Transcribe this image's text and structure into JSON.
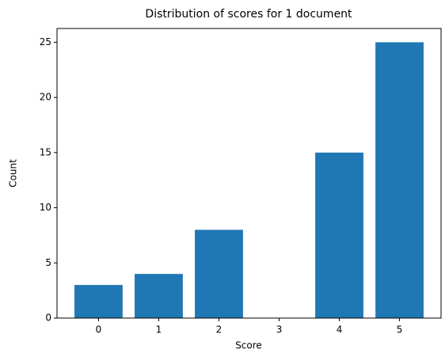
{
  "chart_data": {
    "type": "bar",
    "title": "Distribution of scores for 1 document",
    "x_label": "Score",
    "y_label": "Count",
    "x": [
      0,
      1,
      2,
      3,
      4,
      5
    ],
    "values": [
      3,
      4,
      8,
      0,
      15,
      25
    ],
    "color": "#1f77b4",
    "xlim": [
      -0.69,
      5.69
    ],
    "xticks": [
      0,
      1,
      2,
      3,
      4,
      5
    ],
    "ylim": [
      0,
      26.25
    ],
    "yticks": [
      0,
      5,
      10,
      15,
      20,
      25
    ],
    "grid": false
  }
}
